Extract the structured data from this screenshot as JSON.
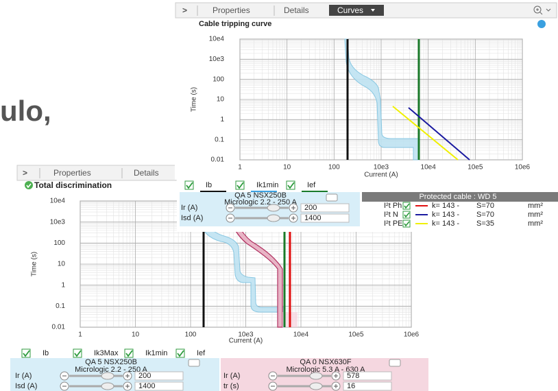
{
  "background_text": "ulo,",
  "top_panel": {
    "tabs": {
      "toggle": ">",
      "properties": "Properties",
      "details": "Details",
      "curves": "Curves"
    },
    "title": "Cable tripping curve",
    "chart": {
      "y_label": "Time (s)",
      "x_label": "Current (A)",
      "yticks": [
        "10e4",
        "10e3",
        "100",
        "10",
        "1",
        "0.1",
        "0.01"
      ],
      "xticks": [
        "1",
        "10",
        "100",
        "10e3",
        "10e4",
        "10e5",
        "10e6"
      ]
    },
    "checks": [
      "Ib",
      "Ik1min",
      "Ief"
    ],
    "device": {
      "name": "QA 5 NSX250B",
      "trip_unit": "Micrologic 2.2 - 250 A",
      "settings": [
        {
          "label": "Ir (A)",
          "value": "200"
        },
        {
          "label": "Isd (A)",
          "value": "1400"
        }
      ]
    },
    "cable": {
      "title": "Protected cable : WD 5",
      "rows": [
        {
          "label": "I²t Ph",
          "k": "k=  143 -",
          "s": "S=70",
          "unit": "mm²"
        },
        {
          "label": "I²t N",
          "k": "k=  143 -",
          "s": "S=70",
          "unit": "mm²"
        },
        {
          "label": "I²t PE",
          "k": "k=  143 -",
          "s": "S=35",
          "unit": "mm²"
        }
      ]
    }
  },
  "bottom_panel": {
    "tabs": {
      "toggle": ">",
      "properties": "Properties",
      "details": "Details"
    },
    "status": "Total discrimination",
    "chart": {
      "y_label": "Time (s)",
      "x_label": "Current (A)",
      "yticks": [
        "10e4",
        "10e3",
        "100",
        "10",
        "1",
        "0.1",
        "0.01"
      ],
      "xticks": [
        "1",
        "10",
        "100",
        "10e3",
        "10e4",
        "10e5",
        "10e6"
      ]
    },
    "checks": [
      "Ib",
      "Ik3Max",
      "Ik1min",
      "Ief"
    ],
    "devices": [
      {
        "name": "QA 5 NSX250B",
        "trip_unit": "Micrologic 2.2 - 250 A",
        "settings": [
          {
            "label": "Ir (A)",
            "value": "200"
          },
          {
            "label": "Isd (A)",
            "value": "1400"
          }
        ]
      },
      {
        "name": "QA 0 NSX630F",
        "trip_unit": "Micrologic 5.3 A - 630 A",
        "settings": [
          {
            "label": "Ir (A)",
            "value": "578"
          },
          {
            "label": "tr (s)",
            "value": "16"
          }
        ]
      }
    ]
  }
}
